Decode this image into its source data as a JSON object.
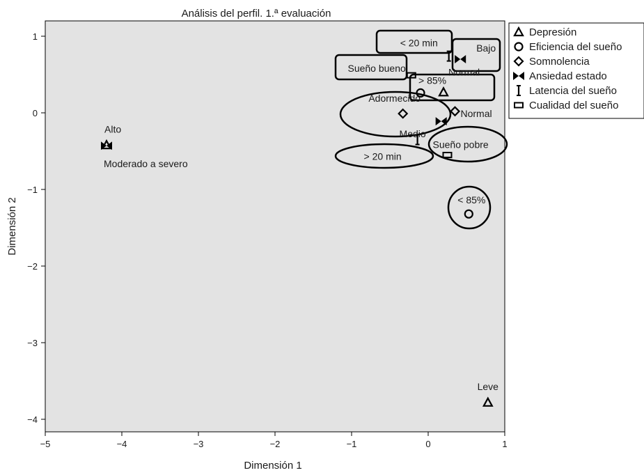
{
  "chart_data": {
    "type": "scatter",
    "title": "Análisis del perfil. 1.ª evaluación",
    "xlabel": "Dimensión 1",
    "ylabel": "Dimensión 2",
    "xlim": [
      -5,
      1
    ],
    "ylim": [
      -4.2,
      1.1
    ],
    "x_ticks": [
      "−5",
      "−4",
      "−3",
      "−2",
      "−1",
      "0",
      "1"
    ],
    "y_ticks": [
      "1",
      "0",
      "−1",
      "−2",
      "−3",
      "−4"
    ],
    "grid": false,
    "legend_position": "right",
    "plot_background": "#e3e3e3",
    "series": [
      {
        "name": "Depresión",
        "marker": "triangle",
        "points": [
          {
            "x": 0.2,
            "y": 0.27,
            "label": "Normal"
          },
          {
            "x": 0.78,
            "y": -3.78,
            "label": "Leve"
          },
          {
            "x": -4.2,
            "y": -0.42,
            "label": "Moderado a severo"
          }
        ]
      },
      {
        "name": "Eficiencia del sueño",
        "marker": "circle",
        "points": [
          {
            "x": -0.1,
            "y": 0.26,
            "label": "> 85%"
          },
          {
            "x": 0.53,
            "y": -1.32,
            "label": "< 85%"
          }
        ]
      },
      {
        "name": "Somnolencia",
        "marker": "diamond",
        "points": [
          {
            "x": -0.33,
            "y": -0.01,
            "label": "Adormecido"
          },
          {
            "x": 0.35,
            "y": 0.02,
            "label": "Normal"
          }
        ]
      },
      {
        "name": "Ansiedad estado",
        "marker": "bowtie",
        "points": [
          {
            "x": 0.42,
            "y": 0.7,
            "label": "Bajo"
          },
          {
            "x": 0.17,
            "y": -0.11,
            "label": "Medio"
          },
          {
            "x": -4.2,
            "y": -0.43,
            "label": "Alto"
          }
        ]
      },
      {
        "name": "Latencia del sueño",
        "marker": "ibeam",
        "points": [
          {
            "x": 0.27,
            "y": 0.74,
            "label": "< 20 min"
          },
          {
            "x": -0.14,
            "y": -0.35,
            "label": "> 20 min"
          }
        ]
      },
      {
        "name": "Cualidad del sueño",
        "marker": "rect",
        "points": [
          {
            "x": -0.22,
            "y": 0.49,
            "label": "Sueño bueno"
          },
          {
            "x": 0.25,
            "y": -0.55,
            "label": "Sueño pobre"
          }
        ]
      }
    ]
  }
}
